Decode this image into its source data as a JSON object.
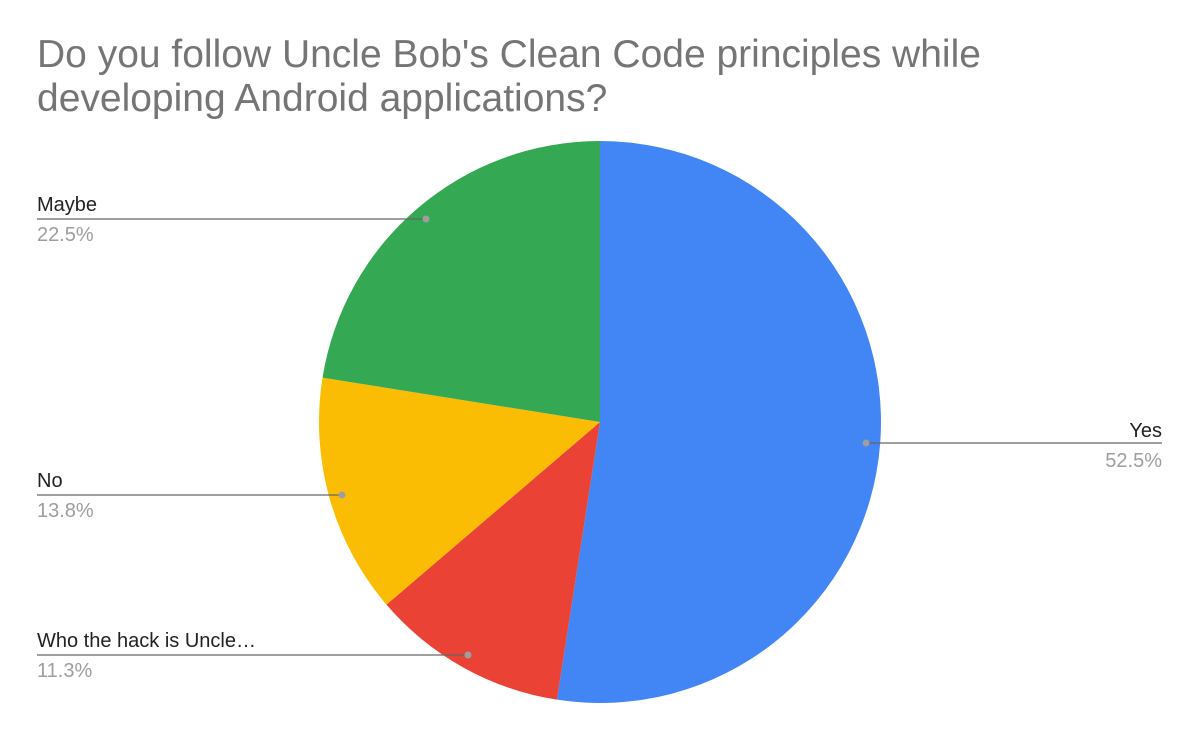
{
  "chart_data": {
    "type": "pie",
    "title": "Do you follow Uncle Bob's Clean Code principles while developing Android applications?",
    "slices": [
      {
        "label": "Yes",
        "value": 52.5,
        "percent_label": "52.5%",
        "color": "#4285F4"
      },
      {
        "label": "Who the hack is Uncle…",
        "value": 11.3,
        "percent_label": "11.3%",
        "color": "#EA4335"
      },
      {
        "label": "No",
        "value": 13.8,
        "percent_label": "13.8%",
        "color": "#FBBC04"
      },
      {
        "label": "Maybe",
        "value": 22.5,
        "percent_label": "22.5%",
        "color": "#34A853"
      }
    ],
    "start_angle": "top",
    "direction": "clockwise",
    "legend": "leader-line labels"
  }
}
